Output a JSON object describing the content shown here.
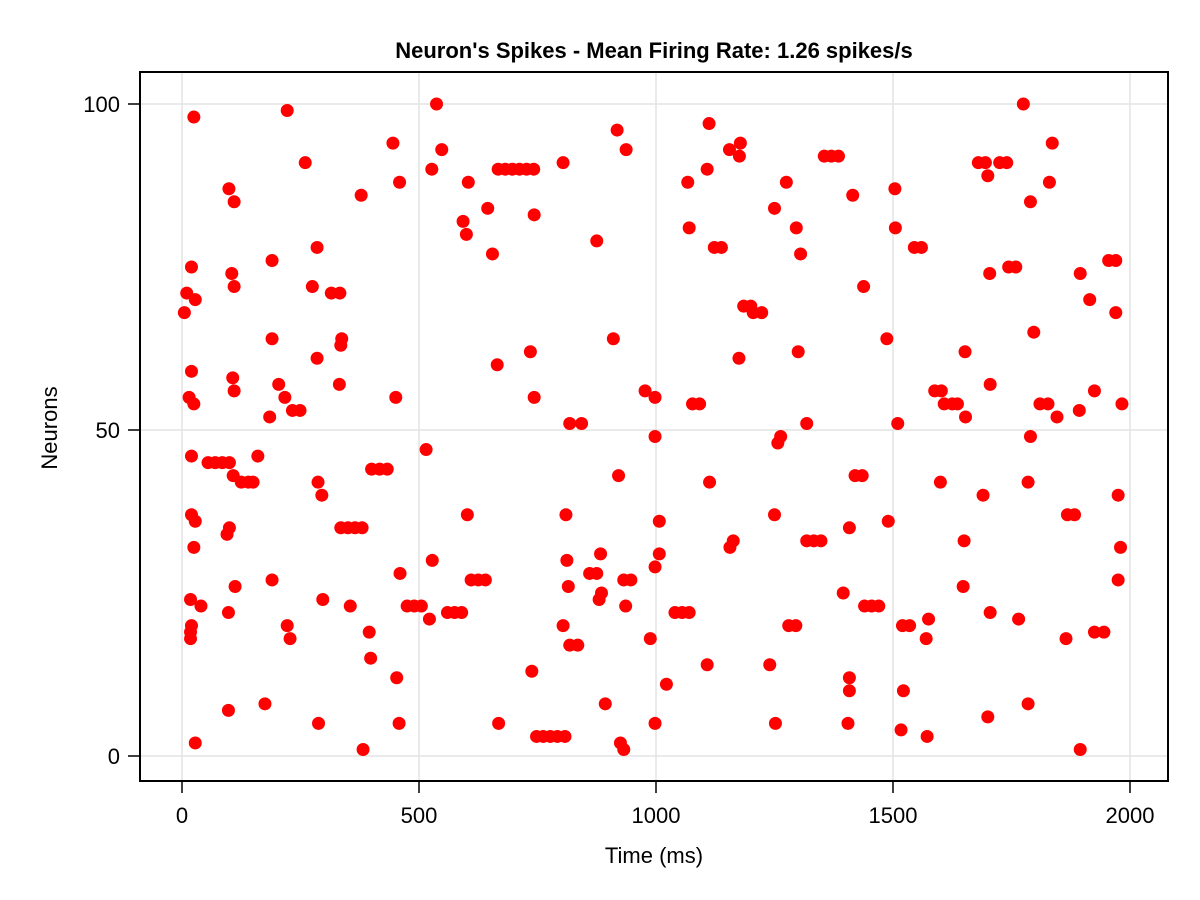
{
  "chart_data": {
    "type": "scatter",
    "title": "Neuron's Spikes - Mean Firing Rate: 1.26 spikes/s",
    "xlabel": "Time (ms)",
    "ylabel": "Neurons",
    "xlim": [
      -90,
      2080
    ],
    "ylim": [
      -4,
      105
    ],
    "xticks": [
      0,
      500,
      1000,
      1500,
      2000
    ],
    "yticks": [
      0,
      50,
      100
    ],
    "grid": true,
    "legend": null,
    "marker_color": "#ff0000",
    "series": [
      {
        "name": "spikes",
        "points": [
          [
            25,
            98
          ],
          [
            222,
            99
          ],
          [
            537,
            100
          ],
          [
            1775,
            100
          ],
          [
            445,
            94
          ],
          [
            918,
            96
          ],
          [
            1112,
            97
          ],
          [
            1178,
            94
          ],
          [
            1836,
            94
          ],
          [
            548,
            93
          ],
          [
            937,
            93
          ],
          [
            1155,
            93
          ],
          [
            1176,
            92
          ],
          [
            1355,
            92
          ],
          [
            1370,
            92
          ],
          [
            1385,
            92
          ],
          [
            260,
            91
          ],
          [
            804,
            91
          ],
          [
            1680,
            91
          ],
          [
            1695,
            91
          ],
          [
            1725,
            91
          ],
          [
            1740,
            91
          ],
          [
            527,
            90
          ],
          [
            667,
            90
          ],
          [
            682,
            90
          ],
          [
            697,
            90
          ],
          [
            712,
            90
          ],
          [
            727,
            90
          ],
          [
            742,
            90
          ],
          [
            1108,
            90
          ],
          [
            1700,
            89
          ],
          [
            459,
            88
          ],
          [
            604,
            88
          ],
          [
            1067,
            88
          ],
          [
            1275,
            88
          ],
          [
            1830,
            88
          ],
          [
            99,
            87
          ],
          [
            1504,
            87
          ],
          [
            378,
            86
          ],
          [
            1415,
            86
          ],
          [
            1790,
            85
          ],
          [
            110,
            85
          ],
          [
            645,
            84
          ],
          [
            1250,
            84
          ],
          [
            743,
            83
          ],
          [
            593,
            82
          ],
          [
            1070,
            81
          ],
          [
            1296,
            81
          ],
          [
            1505,
            81
          ],
          [
            600,
            80
          ],
          [
            875,
            79
          ],
          [
            285,
            78
          ],
          [
            1123,
            78
          ],
          [
            1138,
            78
          ],
          [
            1545,
            78
          ],
          [
            1560,
            78
          ],
          [
            655,
            77
          ],
          [
            1305,
            77
          ],
          [
            190,
            76
          ],
          [
            1955,
            76
          ],
          [
            1970,
            76
          ],
          [
            20,
            75
          ],
          [
            1744,
            75
          ],
          [
            1759,
            75
          ],
          [
            105,
            74
          ],
          [
            1704,
            74
          ],
          [
            1895,
            74
          ],
          [
            110,
            72
          ],
          [
            275,
            72
          ],
          [
            315,
            71
          ],
          [
            333,
            71
          ],
          [
            1438,
            72
          ],
          [
            10,
            71
          ],
          [
            1915,
            70
          ],
          [
            28,
            70
          ],
          [
            1185,
            69
          ],
          [
            1200,
            69
          ],
          [
            1205,
            68
          ],
          [
            1223,
            68
          ],
          [
            5,
            68
          ],
          [
            1970,
            68
          ],
          [
            1797,
            65
          ],
          [
            190,
            64
          ],
          [
            337,
            64
          ],
          [
            910,
            64
          ],
          [
            1487,
            64
          ],
          [
            335,
            63
          ],
          [
            735,
            62
          ],
          [
            1300,
            62
          ],
          [
            1652,
            62
          ],
          [
            285,
            61
          ],
          [
            1175,
            61
          ],
          [
            665,
            60
          ],
          [
            20,
            59
          ],
          [
            107,
            58
          ],
          [
            204,
            57
          ],
          [
            332,
            57
          ],
          [
            1705,
            57
          ],
          [
            110,
            56
          ],
          [
            977,
            56
          ],
          [
            1588,
            56
          ],
          [
            1602,
            56
          ],
          [
            1925,
            56
          ],
          [
            15,
            55
          ],
          [
            217,
            55
          ],
          [
            451,
            55
          ],
          [
            743,
            55
          ],
          [
            998,
            55
          ],
          [
            25,
            54
          ],
          [
            1077,
            54
          ],
          [
            1092,
            54
          ],
          [
            1608,
            54
          ],
          [
            1625,
            54
          ],
          [
            1636,
            54
          ],
          [
            1810,
            54
          ],
          [
            1827,
            54
          ],
          [
            1983,
            54
          ],
          [
            233,
            53
          ],
          [
            249,
            53
          ],
          [
            1893,
            53
          ],
          [
            185,
            52
          ],
          [
            1653,
            52
          ],
          [
            1846,
            52
          ],
          [
            818,
            51
          ],
          [
            843,
            51
          ],
          [
            1318,
            51
          ],
          [
            1510,
            51
          ],
          [
            1790,
            49
          ],
          [
            998,
            49
          ],
          [
            1263,
            49
          ],
          [
            1257,
            48
          ],
          [
            515,
            47
          ],
          [
            20,
            46
          ],
          [
            160,
            46
          ],
          [
            55,
            45
          ],
          [
            70,
            45
          ],
          [
            85,
            45
          ],
          [
            100,
            45
          ],
          [
            400,
            44
          ],
          [
            417,
            44
          ],
          [
            433,
            44
          ],
          [
            108,
            43
          ],
          [
            921,
            43
          ],
          [
            1420,
            43
          ],
          [
            1435,
            43
          ],
          [
            125,
            42
          ],
          [
            140,
            42
          ],
          [
            150,
            42
          ],
          [
            287,
            42
          ],
          [
            1113,
            42
          ],
          [
            1600,
            42
          ],
          [
            1785,
            42
          ],
          [
            295,
            40
          ],
          [
            1690,
            40
          ],
          [
            1975,
            40
          ],
          [
            20,
            37
          ],
          [
            602,
            37
          ],
          [
            810,
            37
          ],
          [
            1250,
            37
          ],
          [
            1868,
            37
          ],
          [
            1883,
            37
          ],
          [
            28,
            36
          ],
          [
            1007,
            36
          ],
          [
            1490,
            36
          ],
          [
            100,
            35
          ],
          [
            335,
            35
          ],
          [
            350,
            35
          ],
          [
            365,
            35
          ],
          [
            380,
            35
          ],
          [
            1408,
            35
          ],
          [
            95,
            34
          ],
          [
            1163,
            33
          ],
          [
            1318,
            33
          ],
          [
            1333,
            33
          ],
          [
            1348,
            33
          ],
          [
            1650,
            33
          ],
          [
            25,
            32
          ],
          [
            1156,
            32
          ],
          [
            1980,
            32
          ],
          [
            883,
            31
          ],
          [
            1007,
            31
          ],
          [
            528,
            30
          ],
          [
            812,
            30
          ],
          [
            998,
            29
          ],
          [
            460,
            28
          ],
          [
            860,
            28
          ],
          [
            875,
            28
          ],
          [
            190,
            27
          ],
          [
            610,
            27
          ],
          [
            625,
            27
          ],
          [
            640,
            27
          ],
          [
            932,
            27
          ],
          [
            947,
            27
          ],
          [
            1975,
            27
          ],
          [
            112,
            26
          ],
          [
            815,
            26
          ],
          [
            1648,
            26
          ],
          [
            885,
            25
          ],
          [
            1395,
            25
          ],
          [
            18,
            24
          ],
          [
            297,
            24
          ],
          [
            880,
            24
          ],
          [
            40,
            23
          ],
          [
            355,
            23
          ],
          [
            475,
            23
          ],
          [
            490,
            23
          ],
          [
            505,
            23
          ],
          [
            1440,
            23
          ],
          [
            1455,
            23
          ],
          [
            1470,
            23
          ],
          [
            936,
            23
          ],
          [
            98,
            22
          ],
          [
            560,
            22
          ],
          [
            575,
            22
          ],
          [
            590,
            22
          ],
          [
            1040,
            22
          ],
          [
            1055,
            22
          ],
          [
            1070,
            22
          ],
          [
            1705,
            22
          ],
          [
            522,
            21
          ],
          [
            1520,
            20
          ],
          [
            1535,
            20
          ],
          [
            1575,
            21
          ],
          [
            1765,
            21
          ],
          [
            20,
            20
          ],
          [
            222,
            20
          ],
          [
            804,
            20
          ],
          [
            1280,
            20
          ],
          [
            1295,
            20
          ],
          [
            18,
            19
          ],
          [
            395,
            19
          ],
          [
            1925,
            19
          ],
          [
            1945,
            19
          ],
          [
            18,
            18
          ],
          [
            228,
            18
          ],
          [
            988,
            18
          ],
          [
            1570,
            18
          ],
          [
            1865,
            18
          ],
          [
            818,
            17
          ],
          [
            835,
            17
          ],
          [
            398,
            15
          ],
          [
            1108,
            14
          ],
          [
            1240,
            14
          ],
          [
            738,
            13
          ],
          [
            453,
            12
          ],
          [
            1408,
            12
          ],
          [
            1022,
            11
          ],
          [
            1408,
            10
          ],
          [
            1522,
            10
          ],
          [
            98,
            7
          ],
          [
            175,
            8
          ],
          [
            893,
            8
          ],
          [
            1785,
            8
          ],
          [
            1700,
            6
          ],
          [
            288,
            5
          ],
          [
            458,
            5
          ],
          [
            668,
            5
          ],
          [
            998,
            5
          ],
          [
            1252,
            5
          ],
          [
            1405,
            5
          ],
          [
            1517,
            4
          ],
          [
            748,
            3
          ],
          [
            762,
            3
          ],
          [
            777,
            3
          ],
          [
            792,
            3
          ],
          [
            808,
            3
          ],
          [
            1572,
            3
          ],
          [
            28,
            2
          ],
          [
            925,
            2
          ],
          [
            382,
            1
          ],
          [
            932,
            1
          ],
          [
            1895,
            1
          ]
        ]
      }
    ]
  }
}
